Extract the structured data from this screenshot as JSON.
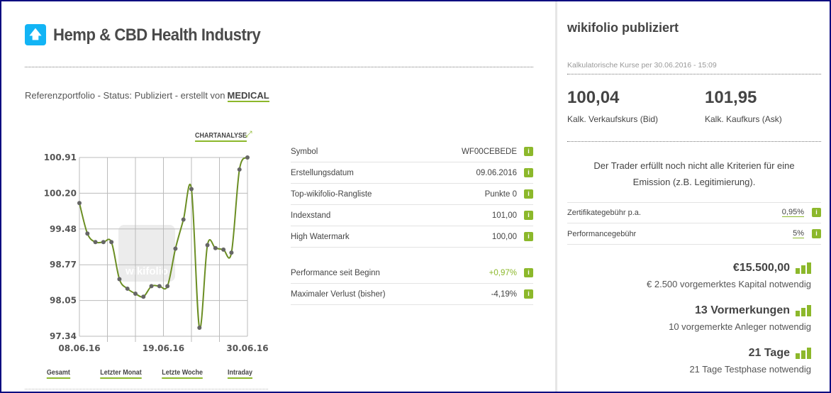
{
  "header": {
    "icon": "arrow-up-icon",
    "title": "Hemp & CBD Health Industry",
    "subtitle": "Referenzportfolio - Status: Publiziert - erstellt von",
    "author": "MEDICAL"
  },
  "chart": {
    "analysis_link": "CHARTANALYSE",
    "watermark": "wikifolio",
    "periods": [
      "Gesamt",
      "Letzter Monat",
      "Letzte Woche",
      "Intraday"
    ]
  },
  "chart_data": {
    "type": "line",
    "title": "",
    "xlabel": "",
    "ylabel": "",
    "ylim": [
      97.34,
      100.91
    ],
    "y_ticks": [
      "100.91",
      "100.20",
      "99.48",
      "98.77",
      "98.05",
      "97.34"
    ],
    "x_ticks": [
      "08.06.16",
      "19.06.16",
      "30.06.16"
    ],
    "x_range": [
      "08.06.16",
      "30.06.16"
    ],
    "grid": true,
    "color": "#6b8e23",
    "values": [
      100.0,
      99.39,
      99.22,
      99.22,
      99.22,
      98.48,
      98.29,
      98.19,
      98.13,
      98.34,
      98.34,
      98.34,
      99.09,
      99.67,
      100.28,
      97.51,
      99.16,
      99.1,
      99.07,
      99.01,
      100.67,
      100.91
    ]
  },
  "details": {
    "rows": [
      {
        "label": "Symbol",
        "value": "WF00CEBEDE"
      },
      {
        "label": "Erstellungsdatum",
        "value": "09.06.2016"
      },
      {
        "label": "Top-wikifolio-Rangliste",
        "value": "Punkte 0"
      },
      {
        "label": "Indexstand",
        "value": "101,00"
      },
      {
        "label": "High Watermark",
        "value": "100,00"
      }
    ],
    "perf_rows": [
      {
        "label": "Performance seit Beginn",
        "value": "+0,97%"
      },
      {
        "label": "Maximaler Verlust (bisher)",
        "value": "-4,19%"
      }
    ],
    "info_icon": "i",
    "positive_color": "#8cb82b"
  },
  "side": {
    "title": "wikifolio publiziert",
    "quote_time": "Kalkulatorische Kurse per 30.06.2016 - 15:09",
    "bid": "100,04",
    "bid_label": "Kalk. Verkaufskurs (Bid)",
    "ask": "101,95",
    "ask_label": "Kalk. Kaufkurs (Ask)",
    "notice": "Der Trader erfüllt noch nicht alle Kriterien für eine Emission (z.B. Legitimierung).",
    "fees": [
      {
        "label": "Zertifikategebühr p.a.",
        "value": "0,95%"
      },
      {
        "label": "Performancegebühr",
        "value": "5%"
      }
    ],
    "stats": [
      {
        "headline": "€15.500,00",
        "detail": "€ 2.500 vorgemerktes Kapital notwendig"
      },
      {
        "headline": "13 Vormerkungen",
        "detail": "10 vorgemerkte Anleger notwendig"
      },
      {
        "headline": "21 Tage",
        "detail": "21 Tage Testphase notwendig"
      }
    ],
    "accent": "#8cb82b"
  }
}
